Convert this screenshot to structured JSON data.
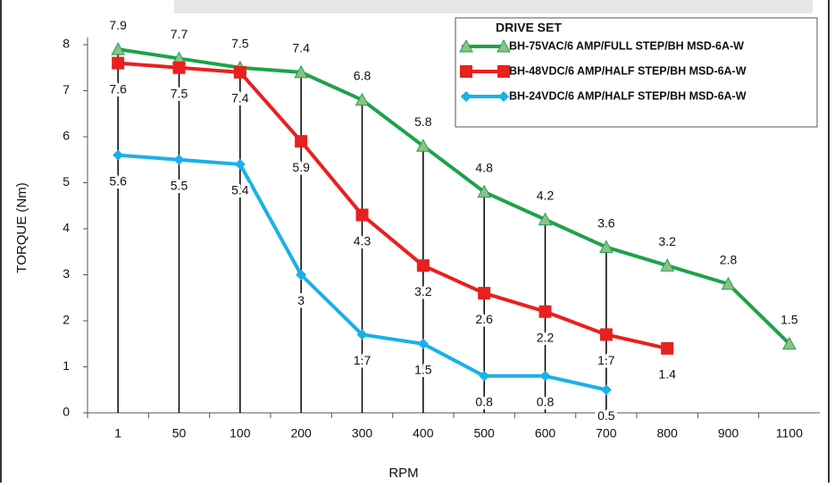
{
  "chart_data": {
    "type": "line",
    "categories": [
      "1",
      "50",
      "100",
      "200",
      "300",
      "400",
      "500",
      "600",
      "700",
      "800",
      "900",
      "1100"
    ],
    "series": [
      {
        "name": "BH-75VAC/6 AMP/FULL STEP/BH MSD-6A-W",
        "color": "#1ea24a",
        "marker": "triangle",
        "values": [
          7.9,
          7.7,
          7.5,
          7.4,
          6.8,
          5.8,
          4.8,
          4.2,
          3.6,
          3.2,
          2.8,
          1.5
        ]
      },
      {
        "name": "BH-48VDC/6 AMP/HALF STEP/BH MSD-6A-W",
        "color": "#e8201f",
        "marker": "square",
        "values": [
          7.6,
          7.5,
          7.4,
          5.9,
          4.3,
          3.2,
          2.6,
          2.2,
          1.7,
          1.4,
          null,
          null
        ]
      },
      {
        "name": "BH-24VDC/6 AMP/HALF STEP/BH MSD-6A-W",
        "color": "#1ab0e8",
        "marker": "diamond",
        "values": [
          5.6,
          5.5,
          5.4,
          3,
          1.7,
          1.5,
          0.8,
          0.8,
          0.5,
          null,
          null,
          null
        ]
      }
    ],
    "legend_title": "DRIVE SET",
    "legend": "top-right",
    "xlabel": "RPM",
    "ylabel": "TORQUE (Nm)",
    "ylim": [
      0,
      8
    ],
    "yticks": [
      0,
      1,
      2,
      3,
      4,
      5,
      6,
      7,
      8
    ]
  }
}
